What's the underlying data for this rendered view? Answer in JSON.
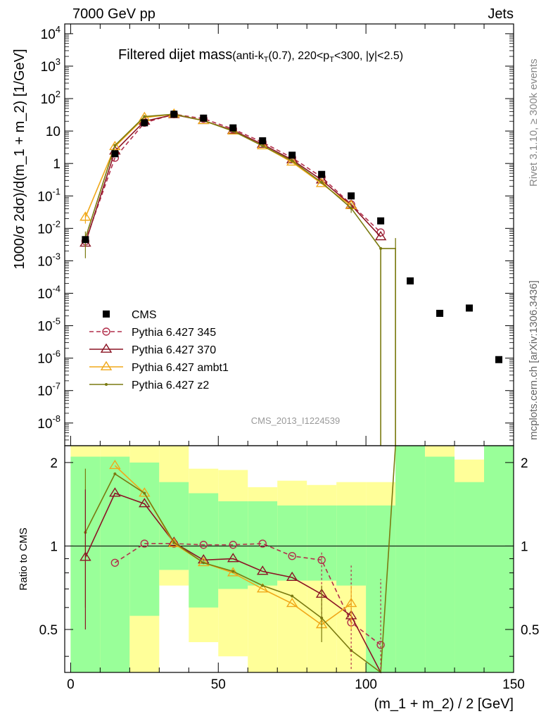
{
  "header": {
    "left": "7000 GeV pp",
    "right": "Jets",
    "side_top": "Rivet 3.1.10, ≥ 300k events",
    "side_bottom": "mcplots.cern.ch [arXiv:1306.3436]",
    "watermark": "CMS_2013_I1224539"
  },
  "chart_data": {
    "type": "line",
    "title_main": "Filtered dijet mass",
    "title_sub": "(anti-k_T(0.7), 220<p_T<300, |y|<2.5)",
    "xlabel": "(m_1 + m_2) / 2 [GeV]",
    "ylabel": "1000/σ 2dσ)/d(m_1 + m_2) [1/GeV]",
    "ratio_ylabel": "Ratio to CMS",
    "xlim": [
      -2,
      150
    ],
    "ylim": [
      2e-09,
      20000.0
    ],
    "yscale": "log",
    "ratio_ylim": [
      0.35,
      2.3
    ],
    "ratio_yscale": "log",
    "x_ticks": [
      "0",
      "50",
      "100",
      "150"
    ],
    "y_ticks": [
      "10^{-8}",
      "10^{-7}",
      "10^{-6}",
      "10^{-5}",
      "10^{-4}",
      "10^{-3}",
      "10^{-2}",
      "10^{-1}",
      "1",
      "10",
      "10^{2}",
      "10^{3}",
      "10^{4}"
    ],
    "ratio_ticks": [
      "0.5",
      "1",
      "2"
    ],
    "legend_position": "lower-left",
    "data": {
      "name": "CMS",
      "x": [
        5,
        15,
        25,
        35,
        45,
        55,
        65,
        75,
        85,
        95,
        105,
        115,
        125,
        135,
        145
      ],
      "y": [
        0.0045,
        2.0,
        18,
        33,
        25,
        12.5,
        5.0,
        1.8,
        0.46,
        0.1,
        0.017,
        0.00024,
        2.4e-05,
        3.5e-05,
        9e-07
      ]
    },
    "bands": [
      {
        "x0": 0,
        "x1": 10,
        "g": [
          0.0,
          2.1
        ],
        "y": [
          0.0,
          2.3
        ]
      },
      {
        "x0": 10,
        "x1": 20,
        "g": [
          0.0,
          2.1
        ],
        "y": [
          0.0,
          2.3
        ]
      },
      {
        "x0": 20,
        "x1": 30,
        "g": [
          0.56,
          2.0
        ],
        "y": [
          0.0,
          2.3
        ]
      },
      {
        "x0": 30,
        "x1": 40,
        "g": [
          0.82,
          1.7
        ],
        "y": [
          0.72,
          2.3
        ]
      },
      {
        "x0": 40,
        "x1": 50,
        "g": [
          0.6,
          1.55
        ],
        "y": [
          0.45,
          1.9
        ]
      },
      {
        "x0": 50,
        "x1": 60,
        "g": [
          0.7,
          1.45
        ],
        "y": [
          0.4,
          1.88
        ]
      },
      {
        "x0": 60,
        "x1": 70,
        "g": [
          0.72,
          1.45
        ],
        "y": [
          0.0,
          1.63
        ]
      },
      {
        "x0": 70,
        "x1": 80,
        "g": [
          0.75,
          1.4
        ],
        "y": [
          0.0,
          1.72
        ]
      },
      {
        "x0": 80,
        "x1": 90,
        "g": [
          0.75,
          1.4
        ],
        "y": [
          0.0,
          1.66
        ]
      },
      {
        "x0": 90,
        "x1": 100,
        "g": [
          0.72,
          1.4
        ],
        "y": [
          0.0,
          1.7
        ]
      },
      {
        "x0": 100,
        "x1": 110,
        "g": [
          0.0,
          1.4
        ],
        "y": [
          0.0,
          1.7
        ]
      },
      {
        "x0": 110,
        "x1": 120,
        "g": [
          0.0,
          2.3
        ],
        "y": [
          0.0,
          2.3
        ]
      },
      {
        "x0": 120,
        "x1": 130,
        "g": [
          0.0,
          2.1
        ],
        "y": [
          0.0,
          2.3
        ]
      },
      {
        "x0": 130,
        "x1": 140,
        "g": [
          0.0,
          1.7
        ],
        "y": [
          0.0,
          2.05
        ]
      },
      {
        "x0": 140,
        "x1": 150,
        "g": [
          0.0,
          2.3
        ],
        "y": [
          0.0,
          2.3
        ]
      }
    ],
    "series": [
      {
        "name": "Pythia 6.427 345",
        "color": "#b22f4b",
        "dash": "dashed",
        "marker": "circle",
        "x": [
          5,
          15,
          25,
          35,
          45,
          55,
          65,
          75,
          85,
          95,
          105
        ],
        "y": [
          0.004,
          1.5,
          18,
          33,
          24,
          11.5,
          4.5,
          1.5,
          0.38,
          0.055,
          0.0075
        ],
        "ratio": [
          null,
          0.87,
          1.02,
          1.02,
          1.01,
          1.01,
          1.02,
          0.92,
          0.89,
          0.53,
          0.44
        ]
      },
      {
        "name": "Pythia 6.427 370",
        "color": "#8b1424",
        "dash": "solid",
        "marker": "triangle",
        "x": [
          5,
          15,
          25,
          35,
          45,
          55,
          65,
          75,
          85,
          95,
          105
        ],
        "y": [
          0.0035,
          2.4,
          20,
          32,
          21,
          10.5,
          3.9,
          1.3,
          0.31,
          0.052,
          0.0055
        ],
        "ratio": [
          0.91,
          1.55,
          1.42,
          1.03,
          0.89,
          0.9,
          0.81,
          0.77,
          0.67,
          0.56,
          0.32
        ]
      },
      {
        "name": "Pythia 6.427 ambt1",
        "color": "#f0a81a",
        "dash": "solid",
        "marker": "triangle",
        "x": [
          5,
          15,
          25,
          35,
          45,
          55,
          65,
          75,
          85,
          95
        ],
        "y": [
          0.022,
          3.3,
          26,
          33,
          21,
          10,
          3.5,
          1.1,
          0.24,
          0.05
        ],
        "ratio": [
          null,
          1.95,
          1.55,
          1.02,
          0.87,
          0.8,
          0.7,
          0.62,
          0.52,
          0.62
        ]
      },
      {
        "name": "Pythia 6.427 z2",
        "color": "#7a7a10",
        "dash": "solid",
        "marker": "dot",
        "x": [
          5,
          15,
          25,
          35,
          45,
          55,
          65,
          75,
          85,
          95,
          105,
          110
        ],
        "y": [
          0.005,
          3.6,
          28,
          33,
          21,
          10,
          3.5,
          1.2,
          0.26,
          0.042,
          0.0024,
          0.0024
        ],
        "ratio": [
          1.12,
          1.82,
          1.55,
          1.03,
          0.87,
          0.81,
          0.72,
          0.66,
          0.55,
          0.42,
          0.2,
          4.0
        ]
      }
    ]
  }
}
